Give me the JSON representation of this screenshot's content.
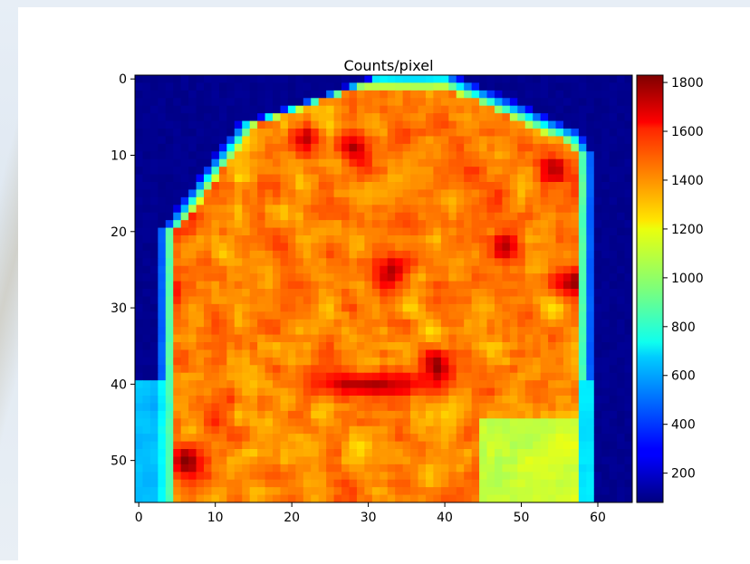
{
  "chart_data": {
    "type": "heatmap",
    "title": "Counts/pixel",
    "xlabel": "",
    "ylabel": "",
    "grid": false,
    "colormap": "jet",
    "rows": 56,
    "cols": 65,
    "xlim": [
      -0.5,
      64.5
    ],
    "ylim": [
      55.5,
      -0.5
    ],
    "x_ticks": [
      0,
      10,
      20,
      30,
      40,
      50,
      60
    ],
    "y_ticks": [
      0,
      10,
      20,
      30,
      40,
      50
    ],
    "colorbar": {
      "range": [
        80,
        1830
      ],
      "ticks": [
        200,
        400,
        600,
        800,
        1000,
        1200,
        1400,
        1600,
        1800
      ]
    },
    "value_summary": {
      "background": 90,
      "object_interior_mean": 1380,
      "edge_rim": 700,
      "lower_left_fill": 620,
      "lower_right_fill": 1050,
      "hotspot_center": [
        30,
        40
      ],
      "hotspot_value": 1760
    }
  }
}
